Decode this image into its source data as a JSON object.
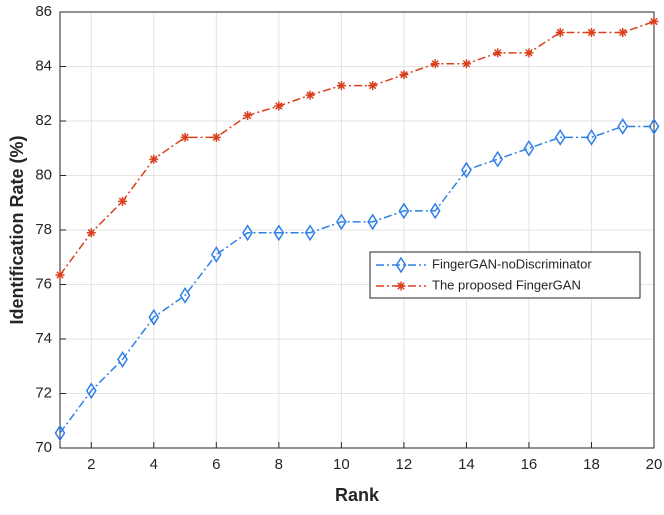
{
  "chart_data": {
    "type": "line",
    "x_label": "Rank",
    "y_label": "Identification Rate (%)",
    "x": [
      1,
      2,
      3,
      4,
      5,
      6,
      7,
      8,
      9,
      10,
      11,
      12,
      13,
      14,
      15,
      16,
      17,
      18,
      19,
      20
    ],
    "series": [
      {
        "name": "FingerGAN-noDiscriminator",
        "color": "#2f80e8",
        "marker": "diamond",
        "values": [
          70.55,
          72.1,
          73.25,
          74.8,
          75.6,
          77.1,
          77.9,
          77.9,
          77.9,
          78.3,
          78.3,
          78.7,
          78.7,
          80.2,
          80.6,
          81.0,
          81.4,
          81.4,
          81.8,
          81.8
        ]
      },
      {
        "name": "The proposed FingerGAN",
        "color": "#d9411e",
        "marker": "asterisk",
        "values": [
          76.35,
          77.9,
          79.05,
          80.6,
          81.4,
          81.4,
          82.2,
          82.55,
          82.95,
          83.3,
          83.3,
          83.7,
          84.1,
          84.1,
          84.5,
          84.5,
          85.25,
          85.25,
          85.25,
          85.65
        ]
      }
    ],
    "xlim": [
      1,
      20
    ],
    "xticks": [
      2,
      4,
      6,
      8,
      10,
      12,
      14,
      16,
      18,
      20
    ],
    "ylim": [
      70,
      86
    ],
    "yticks": [
      70,
      72,
      74,
      76,
      78,
      80,
      82,
      84,
      86
    ],
    "grid": true,
    "legend": "center-right"
  }
}
